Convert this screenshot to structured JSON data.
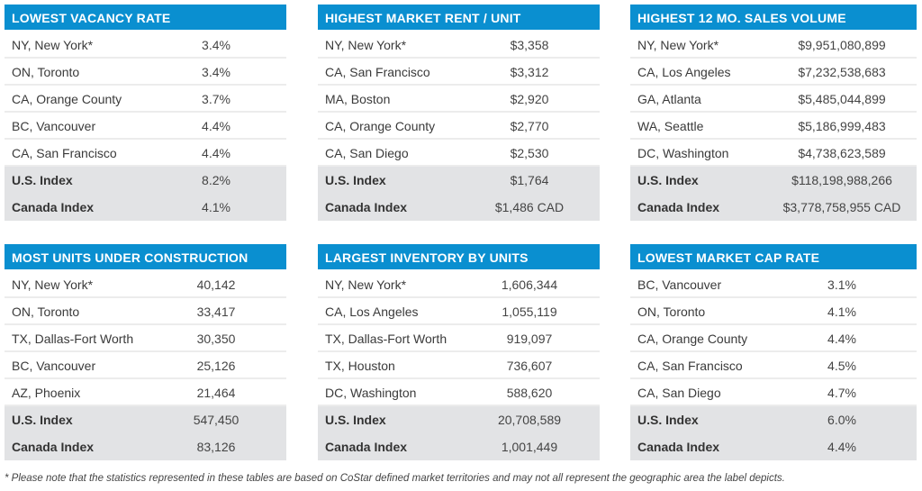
{
  "panels": [
    {
      "title": "LOWEST VACANCY RATE",
      "rows": [
        [
          "NY, New York*",
          "3.4%"
        ],
        [
          "ON, Toronto",
          "3.4%"
        ],
        [
          "CA, Orange County",
          "3.7%"
        ],
        [
          "BC, Vancouver",
          "4.4%"
        ],
        [
          "CA, San Francisco",
          "4.4%"
        ]
      ],
      "index": [
        [
          "U.S. Index",
          "8.2%"
        ],
        [
          "Canada Index",
          "4.1%"
        ]
      ]
    },
    {
      "title": "HIGHEST MARKET RENT / UNIT",
      "rows": [
        [
          "NY, New York*",
          "$3,358"
        ],
        [
          "CA, San Francisco",
          "$3,312"
        ],
        [
          "MA, Boston",
          "$2,920"
        ],
        [
          "CA, Orange County",
          "$2,770"
        ],
        [
          "CA, San Diego",
          "$2,530"
        ]
      ],
      "index": [
        [
          "U.S. Index",
          "$1,764"
        ],
        [
          "Canada Index",
          "$1,486 CAD"
        ]
      ]
    },
    {
      "title": "HIGHEST 12 MO. SALES VOLUME",
      "rows": [
        [
          "NY, New York*",
          "$9,951,080,899"
        ],
        [
          "CA, Los Angeles",
          "$7,232,538,683"
        ],
        [
          "GA, Atlanta",
          "$5,485,044,899"
        ],
        [
          "WA, Seattle",
          "$5,186,999,483"
        ],
        [
          "DC, Washington",
          "$4,738,623,589"
        ]
      ],
      "index": [
        [
          "U.S. Index",
          "$118,198,988,266"
        ],
        [
          "Canada Index",
          "$3,778,758,955 CAD"
        ]
      ]
    },
    {
      "title": "MOST UNITS UNDER CONSTRUCTION",
      "rows": [
        [
          "NY, New York*",
          "40,142"
        ],
        [
          "ON, Toronto",
          "33,417"
        ],
        [
          "TX, Dallas-Fort Worth",
          "30,350"
        ],
        [
          "BC, Vancouver",
          "25,126"
        ],
        [
          "AZ, Phoenix",
          "21,464"
        ]
      ],
      "index": [
        [
          "U.S. Index",
          "547,450"
        ],
        [
          "Canada Index",
          "83,126"
        ]
      ]
    },
    {
      "title": "LARGEST INVENTORY  BY UNITS",
      "rows": [
        [
          "NY, New York*",
          "1,606,344"
        ],
        [
          "CA, Los Angeles",
          "1,055,119"
        ],
        [
          "TX, Dallas-Fort Worth",
          "919,097"
        ],
        [
          "TX, Houston",
          "736,607"
        ],
        [
          "DC, Washington",
          "588,620"
        ]
      ],
      "index": [
        [
          "U.S. Index",
          "20,708,589"
        ],
        [
          "Canada Index",
          "1,001,449"
        ]
      ]
    },
    {
      "title": "LOWEST MARKET CAP RATE",
      "rows": [
        [
          "BC, Vancouver",
          "3.1%"
        ],
        [
          "ON, Toronto",
          "4.1%"
        ],
        [
          "CA, Orange County",
          "4.4%"
        ],
        [
          "CA, San Francisco",
          "4.5%"
        ],
        [
          "CA, San Diego",
          "4.7%"
        ]
      ],
      "index": [
        [
          "U.S. Index",
          "6.0%"
        ],
        [
          "Canada Index",
          "4.4%"
        ]
      ]
    }
  ],
  "footnote": "* Please note that the statistics represented in these tables are based on CoStar defined market territories and may not all represent the geographic area the label depicts.",
  "colors": {
    "header": "#0a8fd0",
    "index_bg": "#e2e3e5"
  }
}
